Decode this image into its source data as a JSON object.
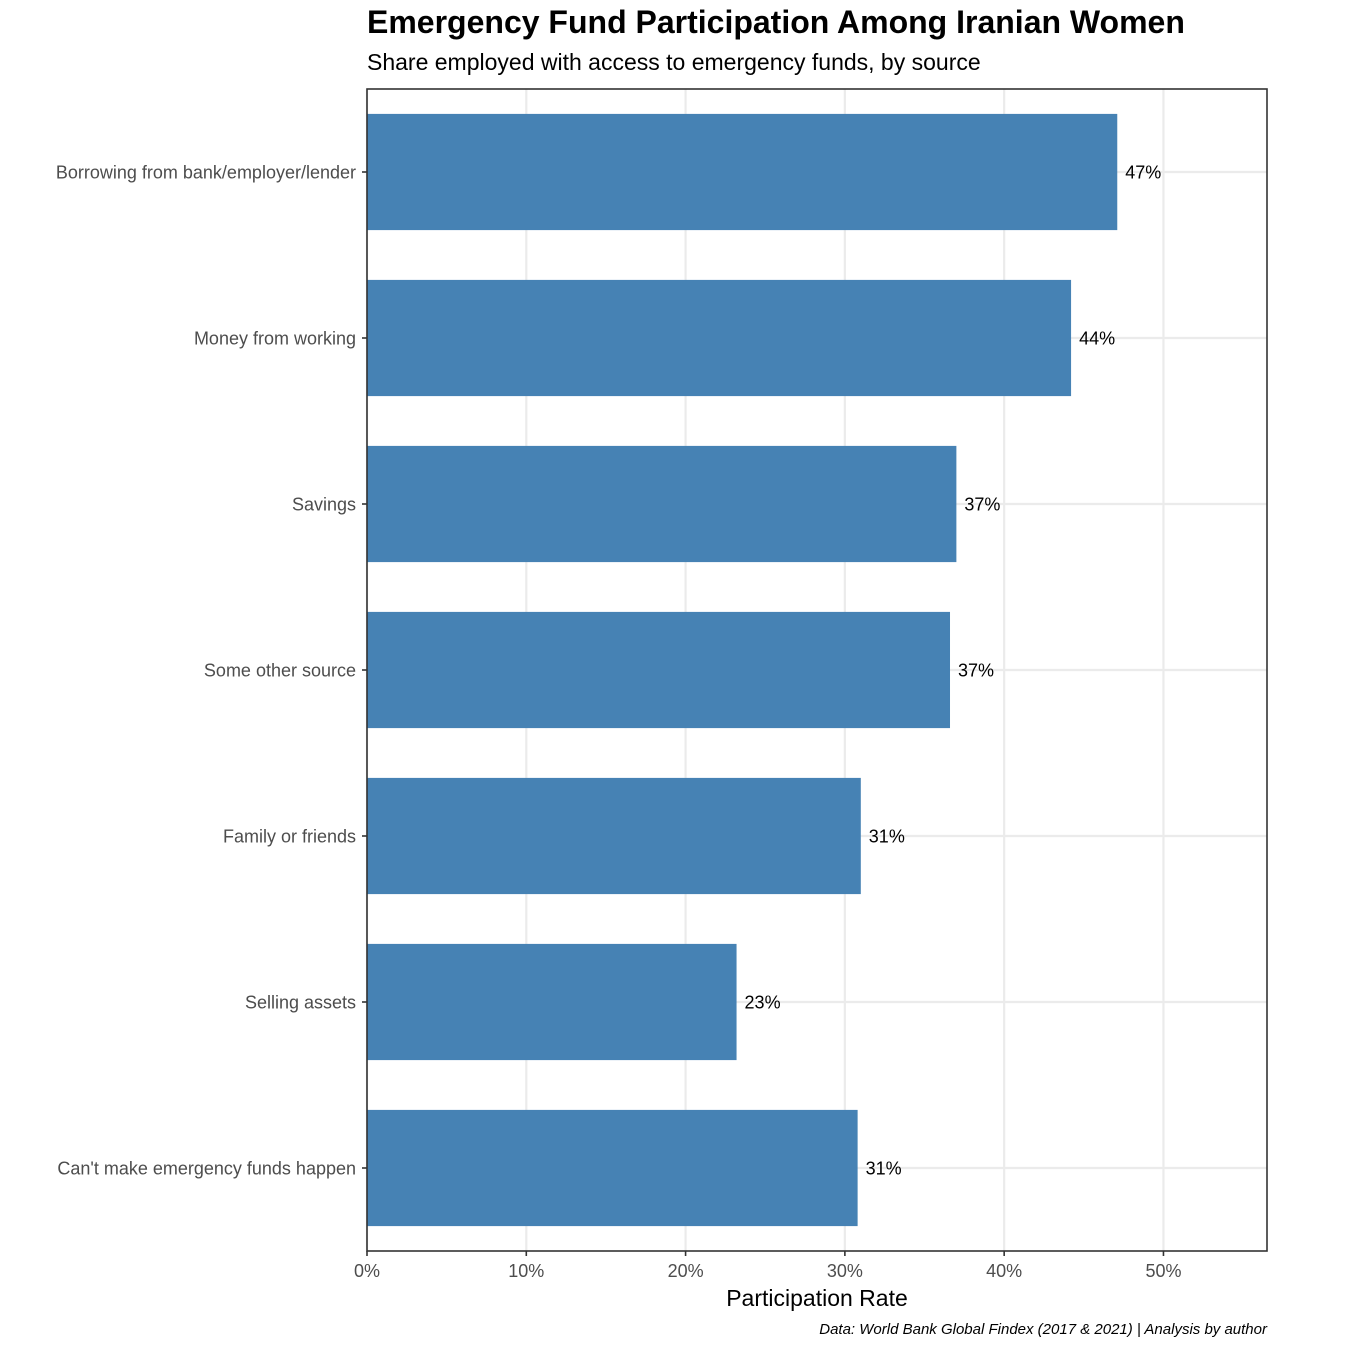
{
  "chart_data": {
    "type": "bar",
    "orientation": "horizontal",
    "title": "Emergency Fund Participation Among Iranian Women",
    "subtitle": "Share employed with access to emergency funds, by source",
    "xlabel": "Participation Rate",
    "ylabel": "",
    "caption": "Data: World Bank Global Findex (2017 & 2021) | Analysis by author",
    "categories": [
      "Borrowing from bank/employer/lender",
      "Money from working",
      "Savings",
      "Some other source",
      "Family or friends",
      "Selling assets",
      "Can't make emergency funds happen"
    ],
    "values": [
      47.1,
      44.2,
      37.0,
      36.6,
      31.0,
      23.2,
      30.8
    ],
    "data_labels": [
      "47%",
      "44%",
      "37%",
      "37%",
      "31%",
      "23%",
      "31%"
    ],
    "x_ticks": [
      0,
      10,
      20,
      30,
      40,
      50
    ],
    "x_tick_labels": [
      "0%",
      "10%",
      "20%",
      "30%",
      "40%",
      "50%"
    ],
    "xlim": [
      0,
      56.5
    ],
    "grid": true,
    "bar_color": "#4682b4",
    "gridline_color": "#ebebeb",
    "border_color": "#333333"
  }
}
